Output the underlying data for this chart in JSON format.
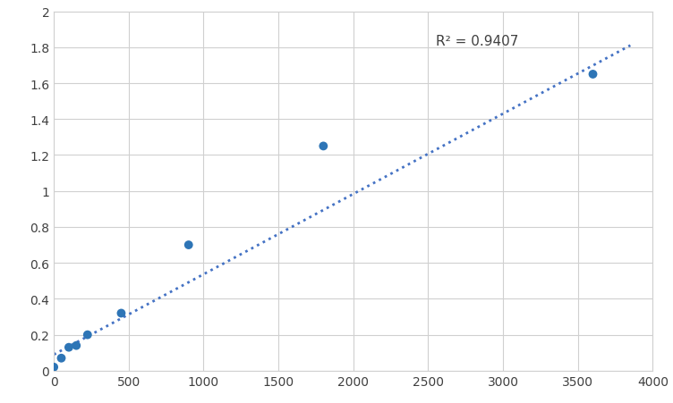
{
  "scatter_points_x": [
    0,
    50,
    100,
    150,
    225,
    450,
    900,
    1800,
    3600
  ],
  "scatter_points_y": [
    0.02,
    0.07,
    0.13,
    0.14,
    0.2,
    0.32,
    0.7,
    1.25,
    1.65
  ],
  "r_squared": "R² = 0.9407",
  "r2_x": 2550,
  "r2_y": 1.875,
  "trendline_start_x": 0,
  "trendline_start_y": 0.09,
  "trendline_end_x": 3850,
  "trendline_end_y": 1.81,
  "xlim": [
    0,
    4000
  ],
  "ylim": [
    0,
    2.0
  ],
  "xticks": [
    0,
    500,
    1000,
    1500,
    2000,
    2500,
    3000,
    3500,
    4000
  ],
  "yticks": [
    0,
    0.2,
    0.4,
    0.6,
    0.8,
    1.0,
    1.2,
    1.4,
    1.6,
    1.8,
    2.0
  ],
  "dot_color": "#2e75b6",
  "line_color": "#4472c4",
  "background_color": "#ffffff",
  "plot_bg_color": "#ffffff",
  "grid_color": "#d0d0d0",
  "dot_size": 50,
  "tick_fontsize": 10,
  "annotation_fontsize": 11
}
